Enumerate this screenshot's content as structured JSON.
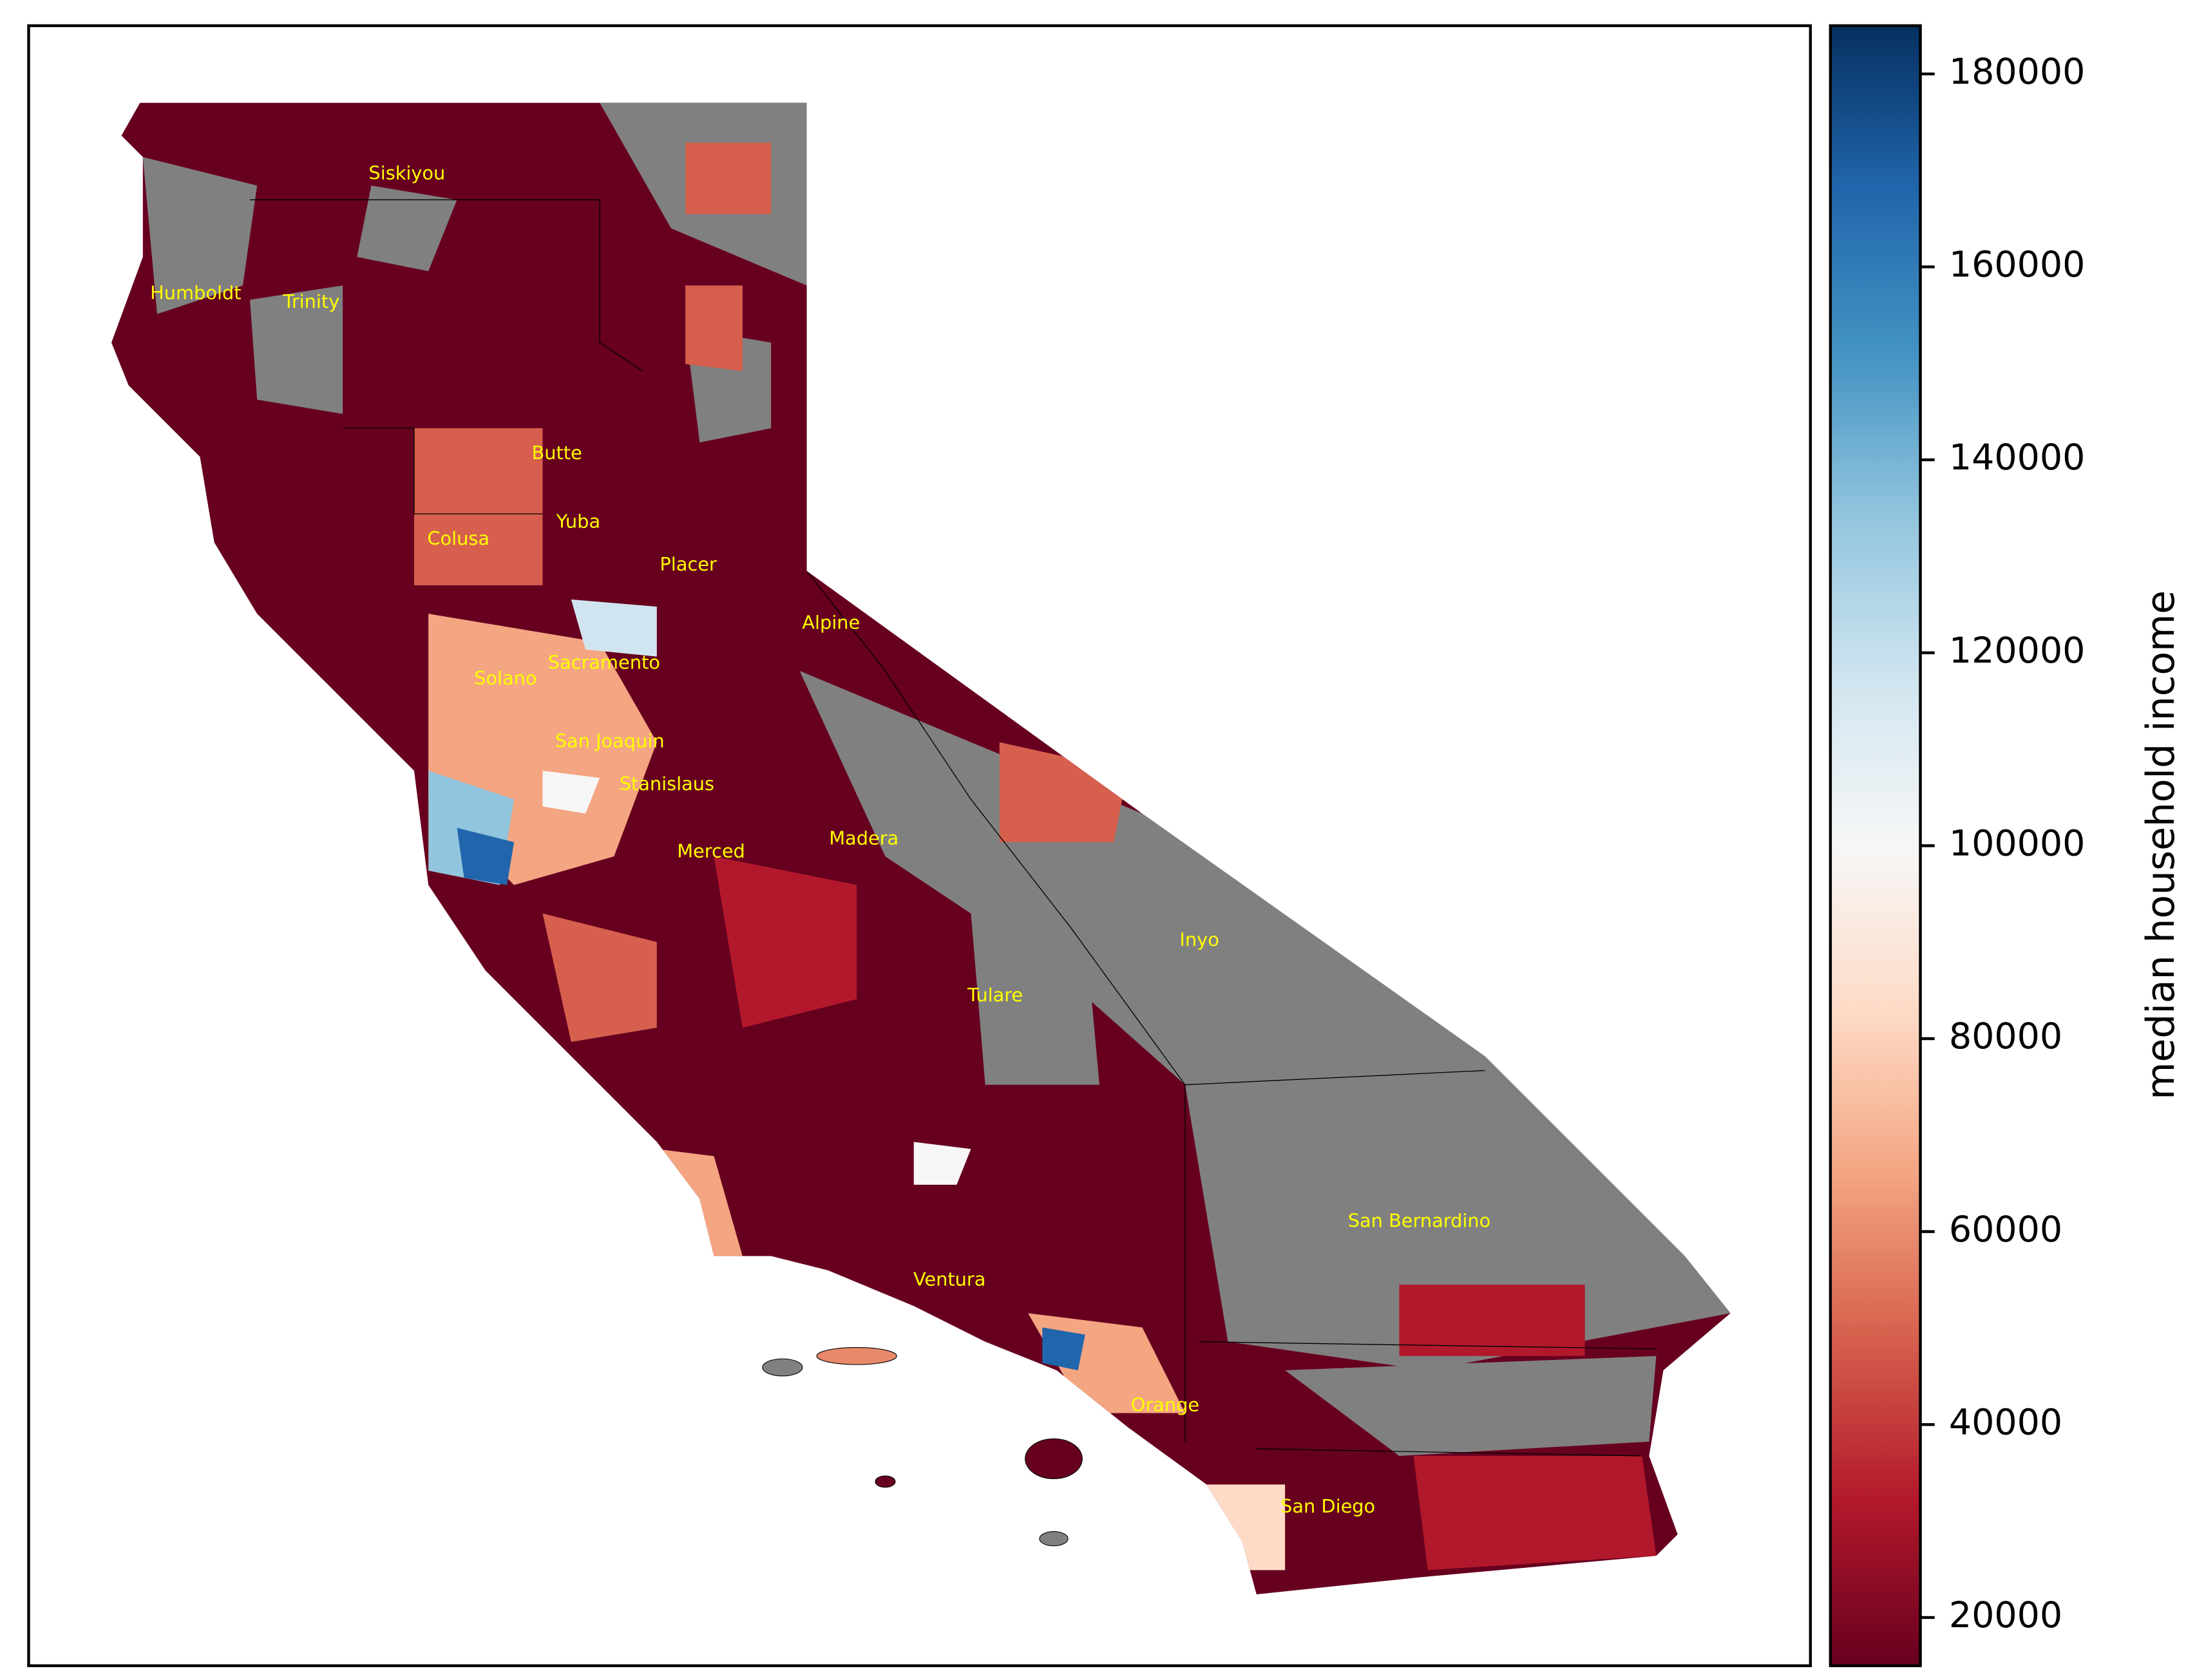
{
  "map": {
    "counties": [
      "Siskiyou",
      "Humboldt",
      "Trinity",
      "Butte",
      "Colusa",
      "Yuba",
      "Placer",
      "Alpine",
      "Sacramento",
      "Solano",
      "San Joaquin",
      "Stanislaus",
      "Madera",
      "Merced",
      "Inyo",
      "Tulare",
      "San Bernardino",
      "Ventura",
      "Orange",
      "San Diego"
    ],
    "colorbar": {
      "label": "median household income",
      "lim": [
        15000,
        185000
      ],
      "ticks": [
        20000,
        40000,
        60000,
        80000,
        100000,
        120000,
        140000,
        160000,
        180000
      ],
      "colormap": [
        "#67001f",
        "#b2182b",
        "#d6604d",
        "#f4a582",
        "#fddbc7",
        "#f7f7f7",
        "#d1e5f0",
        "#92c5de",
        "#4393c3",
        "#2166ac",
        "#053061"
      ]
    }
  }
}
